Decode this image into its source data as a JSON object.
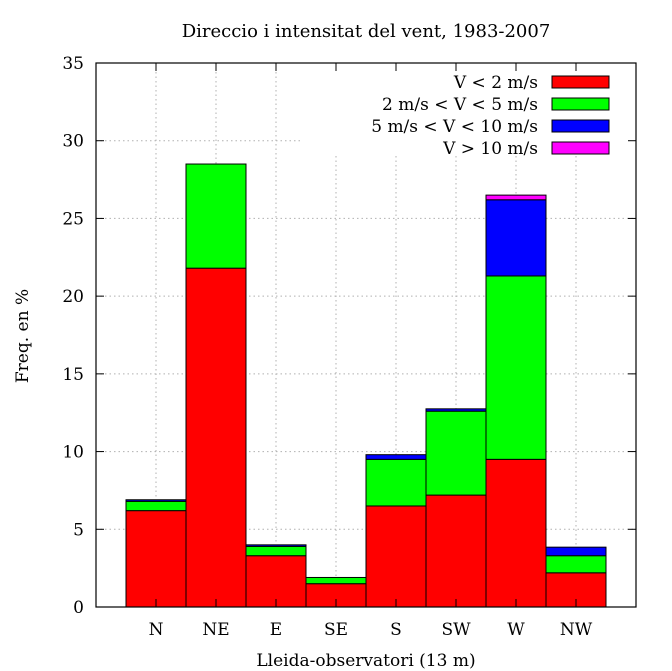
{
  "chart_data": {
    "type": "bar",
    "stacked": true,
    "title": "Direccio i intensitat del vent, 1983-2007",
    "xlabel": "Lleida-observatori (13 m)",
    "ylabel": "Freq. en %",
    "categories": [
      "N",
      "NE",
      "E",
      "SE",
      "S",
      "SW",
      "W",
      "NW"
    ],
    "ylim": [
      0,
      35
    ],
    "yticks": [
      0,
      5,
      10,
      15,
      20,
      25,
      30,
      35
    ],
    "grid": true,
    "legend_position": "top-right",
    "series": [
      {
        "name": "V < 2 m/s",
        "color": "#ff0000",
        "values": [
          6.2,
          21.8,
          3.3,
          1.5,
          6.5,
          7.2,
          9.5,
          2.2
        ]
      },
      {
        "name": "2 m/s < V < 5 m/s",
        "color": "#00ff00",
        "values": [
          0.6,
          6.7,
          0.6,
          0.4,
          3.0,
          5.4,
          11.8,
          1.1
        ]
      },
      {
        "name": "5 m/s < V < 10 m/s",
        "color": "#0000ff",
        "values": [
          0.1,
          0.0,
          0.1,
          0.0,
          0.3,
          0.15,
          4.9,
          0.55
        ]
      },
      {
        "name": "V > 10 m/s",
        "color": "#ff00ff",
        "values": [
          0.0,
          0.0,
          0.0,
          0.0,
          0.0,
          0.0,
          0.3,
          0.0
        ]
      }
    ]
  }
}
